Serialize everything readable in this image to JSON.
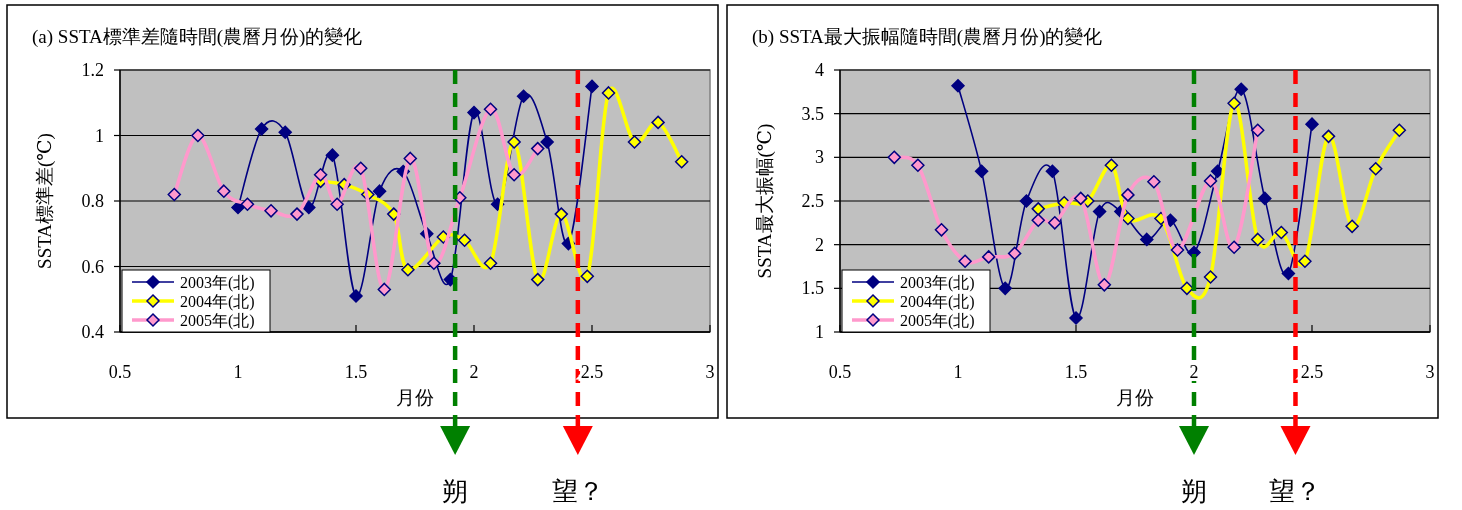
{
  "chart_data": [
    {
      "type": "line",
      "title": "(a) SSTA標準差隨時間(農曆月份)的變化",
      "xlabel": "月份",
      "ylabel": "SSTA標準差(℃)",
      "xlim": [
        0.5,
        3
      ],
      "xticks": [
        0.5,
        1,
        1.5,
        2,
        2.5,
        3
      ],
      "ylim": [
        0.4,
        1.2
      ],
      "yticks": [
        0.4,
        0.6,
        0.8,
        1,
        1.2
      ],
      "grid": "y",
      "legend": "bottom left",
      "marker": "diamond",
      "line_style": "solid",
      "series": [
        {
          "name": "2003年(北)",
          "color": "#000080",
          "x": [
            1.0,
            1.1,
            1.2,
            1.3,
            1.4,
            1.5,
            1.6,
            1.7,
            1.8,
            1.9,
            2.0,
            2.1,
            2.21,
            2.31,
            2.4,
            2.5
          ],
          "values": [
            0.78,
            1.02,
            1.01,
            0.78,
            0.94,
            0.51,
            0.83,
            0.89,
            0.7,
            0.56,
            1.07,
            0.79,
            1.12,
            0.98,
            0.67,
            1.15
          ]
        },
        {
          "name": "2004年(北)",
          "color": "#ffff00",
          "x": [
            1.35,
            1.45,
            1.55,
            1.66,
            1.72,
            1.87,
            1.96,
            2.07,
            2.17,
            2.27,
            2.37,
            2.48,
            2.57,
            2.68,
            2.78,
            2.88
          ],
          "values": [
            0.86,
            0.85,
            0.82,
            0.76,
            0.59,
            0.69,
            0.68,
            0.61,
            0.98,
            0.56,
            0.76,
            0.57,
            1.13,
            0.98,
            1.04,
            0.92
          ]
        },
        {
          "name": "2005年(北)",
          "color": "#ff99cc",
          "x": [
            0.73,
            0.83,
            0.94,
            1.04,
            1.14,
            1.25,
            1.35,
            1.42,
            1.52,
            1.62,
            1.73,
            1.83,
            1.94,
            2.07,
            2.17,
            2.27
          ],
          "values": [
            0.82,
            1.0,
            0.83,
            0.79,
            0.77,
            0.76,
            0.88,
            0.79,
            0.9,
            0.53,
            0.93,
            0.61,
            0.81,
            1.08,
            0.88,
            0.96
          ]
        }
      ],
      "ref_lines": [
        {
          "axis": "x",
          "value": 1.92,
          "label": "朔",
          "color": "#008000",
          "line_style": "dashed"
        },
        {
          "axis": "x",
          "value": 2.44,
          "label": "望？",
          "color": "#ff0000",
          "line_style": "dashed"
        }
      ]
    },
    {
      "type": "line",
      "title": "(b) SSTA最大振幅隨時間(農曆月份)的變化",
      "xlabel": "月份",
      "ylabel": "SSTA最大振幅(℃)",
      "xlim": [
        0.5,
        3
      ],
      "xticks": [
        0.5,
        1,
        1.5,
        2,
        2.5,
        3
      ],
      "ylim": [
        1,
        4
      ],
      "yticks": [
        1,
        1.5,
        2,
        2.5,
        3,
        3.5,
        4
      ],
      "grid": "y",
      "legend": "bottom left",
      "marker": "diamond",
      "line_style": "solid",
      "series": [
        {
          "name": "2003年(北)",
          "color": "#000080",
          "x": [
            1.0,
            1.1,
            1.2,
            1.29,
            1.4,
            1.5,
            1.6,
            1.69,
            1.8,
            1.9,
            2.0,
            2.1,
            2.2,
            2.3,
            2.4,
            2.5
          ],
          "values": [
            3.82,
            2.84,
            1.5,
            2.5,
            2.84,
            1.16,
            2.38,
            2.38,
            2.06,
            2.28,
            1.91,
            2.84,
            3.78,
            2.53,
            1.67,
            3.38
          ]
        },
        {
          "name": "2004年(北)",
          "color": "#ffff00",
          "x": [
            1.34,
            1.45,
            1.55,
            1.65,
            1.72,
            1.86,
            1.97,
            2.07,
            2.17,
            2.27,
            2.37,
            2.47,
            2.57,
            2.67,
            2.77,
            2.87
          ],
          "values": [
            2.41,
            2.48,
            2.5,
            2.91,
            2.3,
            2.3,
            1.5,
            1.63,
            3.62,
            2.06,
            2.14,
            1.81,
            3.24,
            2.21,
            2.87,
            3.31
          ]
        },
        {
          "name": "2005年(北)",
          "color": "#ff99cc",
          "x": [
            0.73,
            0.83,
            0.93,
            1.03,
            1.13,
            1.24,
            1.34,
            1.41,
            1.52,
            1.62,
            1.72,
            1.83,
            1.93,
            2.07,
            2.17,
            2.27
          ],
          "values": [
            3.0,
            2.91,
            2.17,
            1.81,
            1.86,
            1.9,
            2.28,
            2.25,
            2.53,
            1.54,
            2.57,
            2.72,
            1.94,
            2.73,
            1.97,
            3.31
          ]
        }
      ],
      "ref_lines": [
        {
          "axis": "x",
          "value": 2.0,
          "label": "朔",
          "color": "#008000",
          "line_style": "dashed"
        },
        {
          "axis": "x",
          "value": 2.43,
          "label": "望？",
          "color": "#ff0000",
          "line_style": "dashed"
        }
      ]
    }
  ]
}
